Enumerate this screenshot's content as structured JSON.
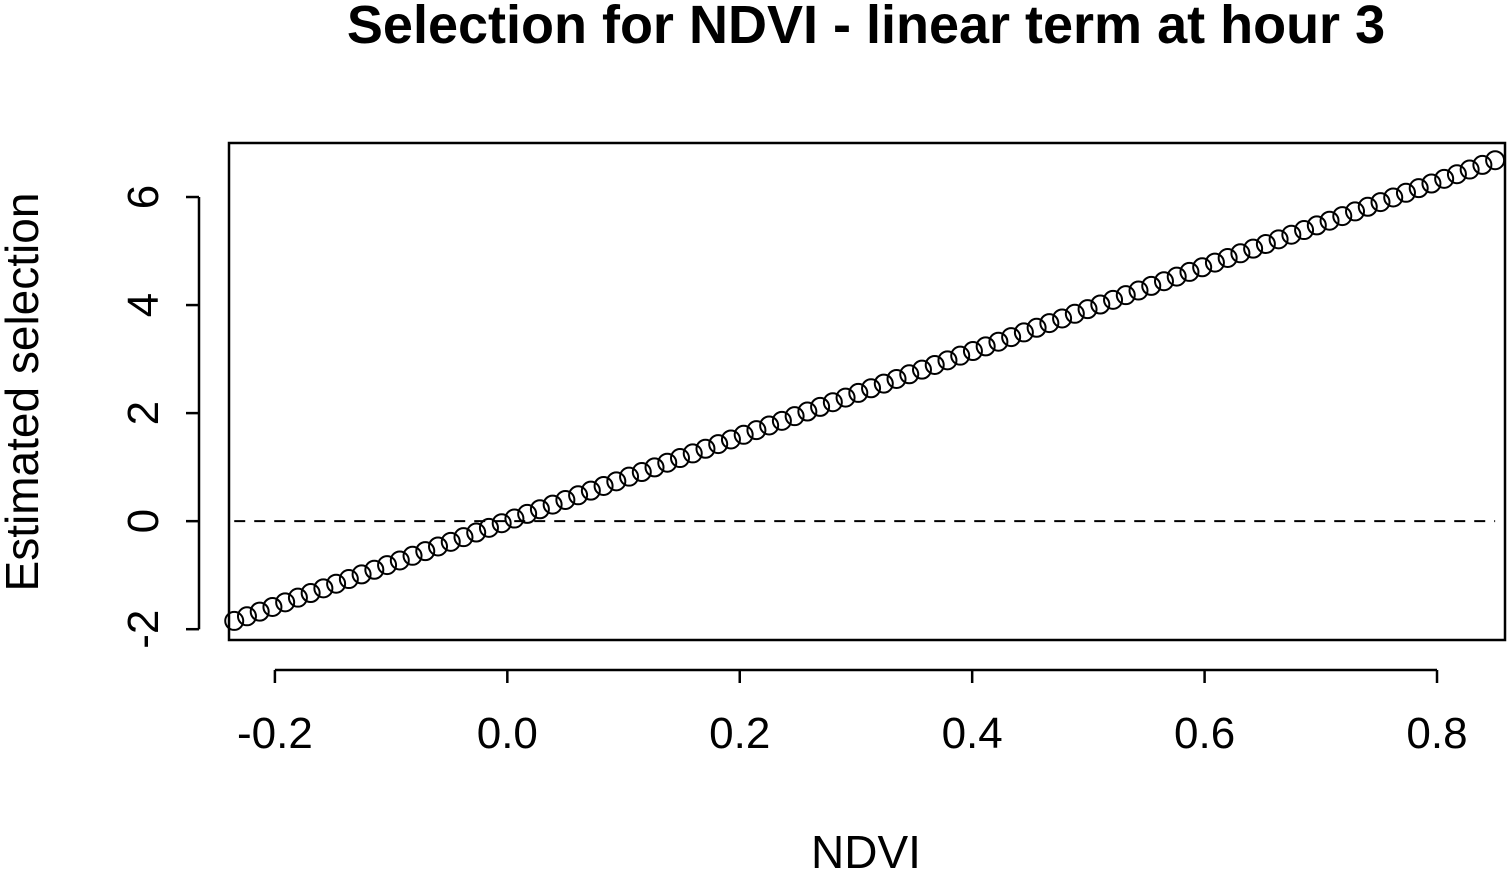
{
  "chart_data": {
    "type": "scatter",
    "title": "Selection for NDVI - linear term at hour 3",
    "xlabel": "NDVI",
    "ylabel": "Estimated selection",
    "xlim": [
      -0.2395,
      0.8585
    ],
    "ylim": [
      -2.2,
      7.0
    ],
    "x_ticks": [
      -0.2,
      0.0,
      0.2,
      0.4,
      0.6,
      0.8
    ],
    "x_tick_labels": [
      "-0.2",
      "0.0",
      "0.2",
      "0.4",
      "0.6",
      "0.8"
    ],
    "y_ticks": [
      -2,
      0,
      2,
      4,
      6
    ],
    "y_tick_labels": [
      "-2",
      "0",
      "2",
      "4",
      "6"
    ],
    "grid": false,
    "legend": "none",
    "reference_line": {
      "y": 0,
      "style": "dashed",
      "x_range": [
        -0.235,
        0.85
      ]
    },
    "series": [
      {
        "marker": "open-circle",
        "x_start": -0.235,
        "x_end": 0.85,
        "count": 100,
        "slope": 7.86,
        "intercept": 0.0
      }
    ]
  }
}
